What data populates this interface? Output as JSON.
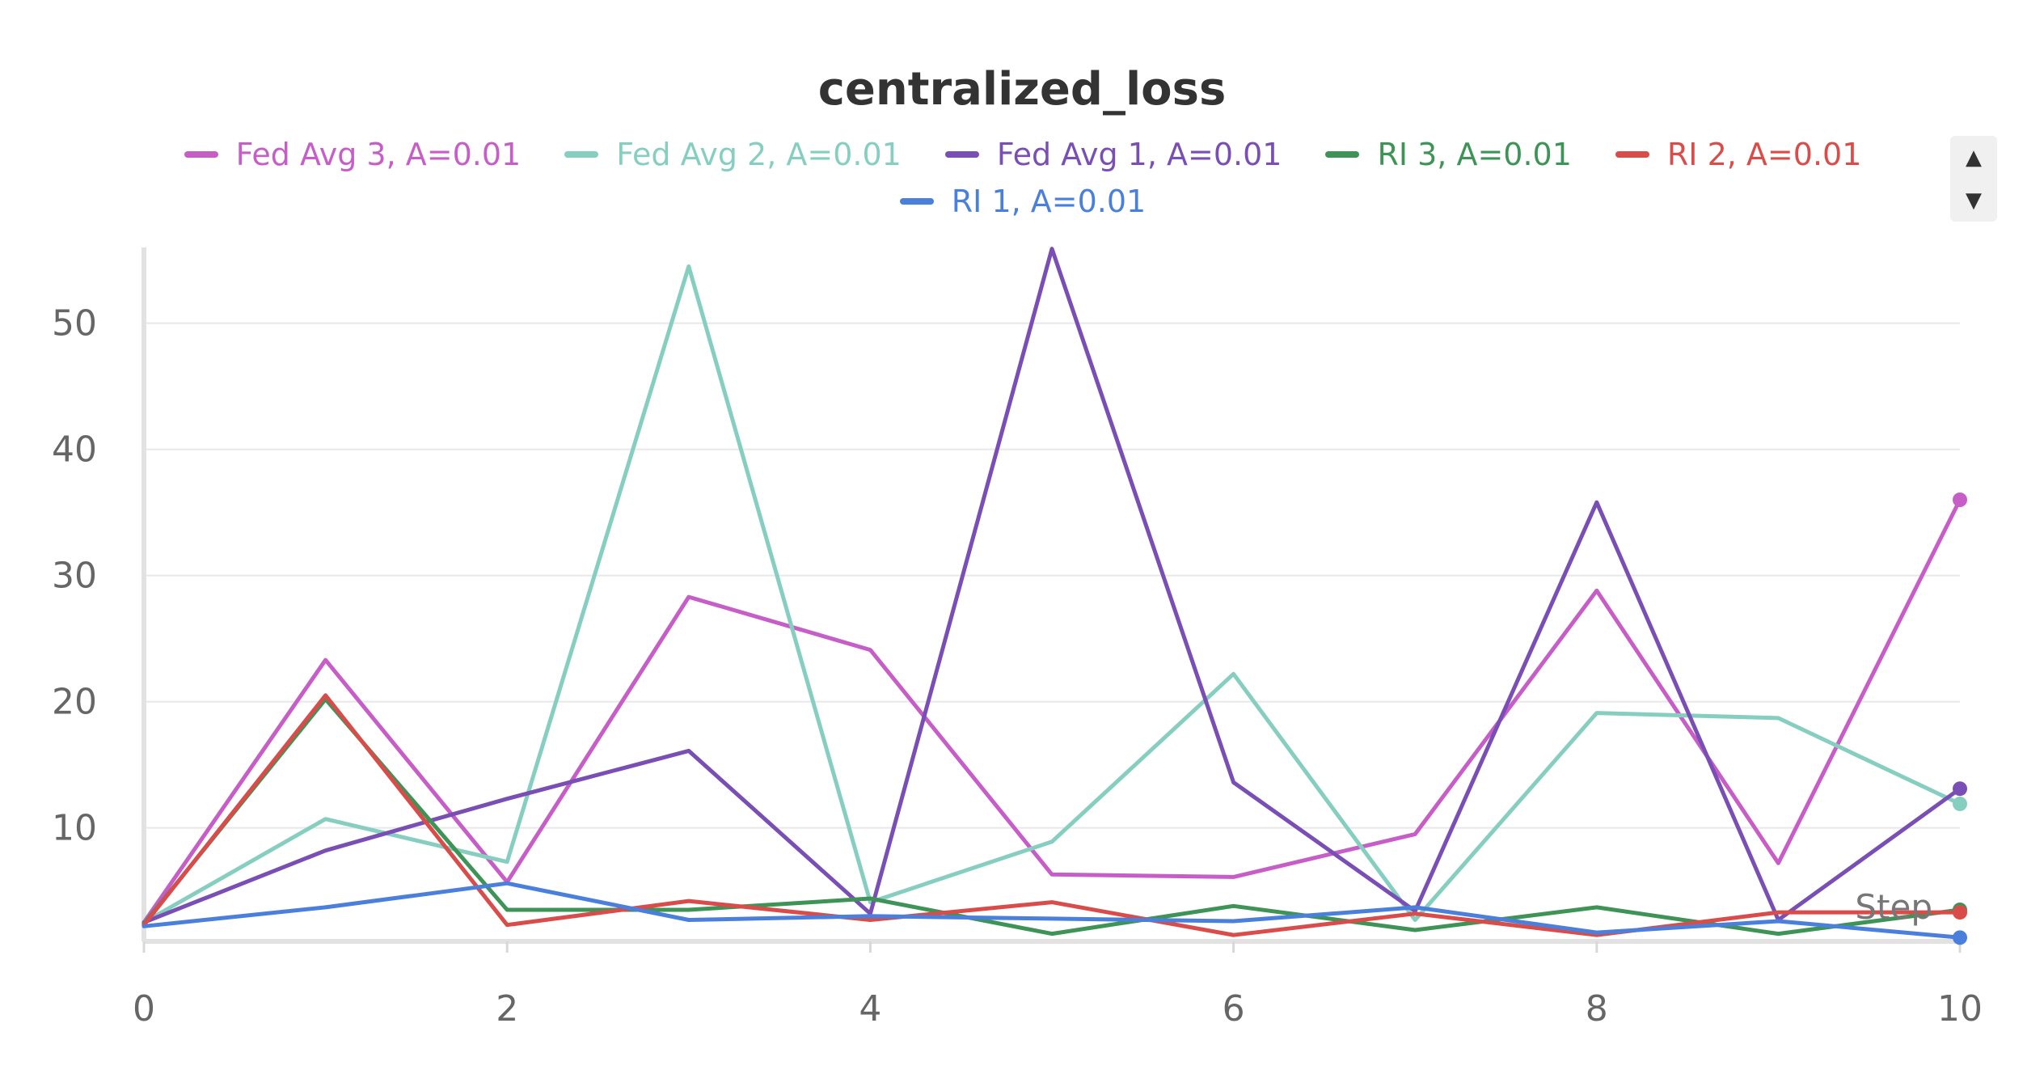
{
  "chart_data": {
    "type": "line",
    "title": "centralized_loss",
    "xlabel": "Step",
    "ylabel": "",
    "xlim": [
      0,
      10
    ],
    "ylim": [
      1,
      56
    ],
    "x": [
      0,
      1,
      2,
      3,
      4,
      5,
      6,
      7,
      8,
      9,
      10
    ],
    "xticks": [
      0,
      2,
      4,
      6,
      8,
      10
    ],
    "yticks": [
      10,
      20,
      30,
      40,
      50
    ],
    "grid": "horizontal",
    "legend_position": "top",
    "series": [
      {
        "name": "Fed Avg 3, A=0.01",
        "color": "#c75ec8",
        "values": [
          2.5,
          23.3,
          5.7,
          28.3,
          24.1,
          6.3,
          6.1,
          9.5,
          28.8,
          7.2,
          36
        ]
      },
      {
        "name": "Fed Avg 2, A=0.01",
        "color": "#86cfc0",
        "values": [
          2.5,
          10.7,
          7.3,
          54.5,
          4.1,
          8.9,
          22.2,
          2.7,
          19.1,
          18.7,
          11.9
        ]
      },
      {
        "name": "Fed Avg 1, A=0.01",
        "color": "#7a4fb5",
        "values": [
          2.5,
          8.2,
          12.3,
          16.1,
          3.2,
          55.9,
          13.6,
          3.4,
          35.8,
          2.7,
          13.1
        ]
      },
      {
        "name": "RI 3, A=0.01",
        "color": "#3e9456",
        "values": [
          2.4,
          20.2,
          3.5,
          3.5,
          4.4,
          1.6,
          3.8,
          1.9,
          3.7,
          1.6,
          3.5
        ]
      },
      {
        "name": "RI 2, A=0.01",
        "color": "#d94c4a",
        "values": [
          2.3,
          20.5,
          2.3,
          4.2,
          2.7,
          4.1,
          1.5,
          3.2,
          1.5,
          3.3,
          3.3
        ]
      },
      {
        "name": "RI 1, A=0.01",
        "color": "#4a80dc",
        "values": [
          2.2,
          3.7,
          5.6,
          2.7,
          3.0,
          2.8,
          2.6,
          3.7,
          1.7,
          2.6,
          1.3
        ]
      }
    ]
  },
  "legend_scroll": {
    "up_icon": "▲",
    "down_icon": "▼"
  }
}
